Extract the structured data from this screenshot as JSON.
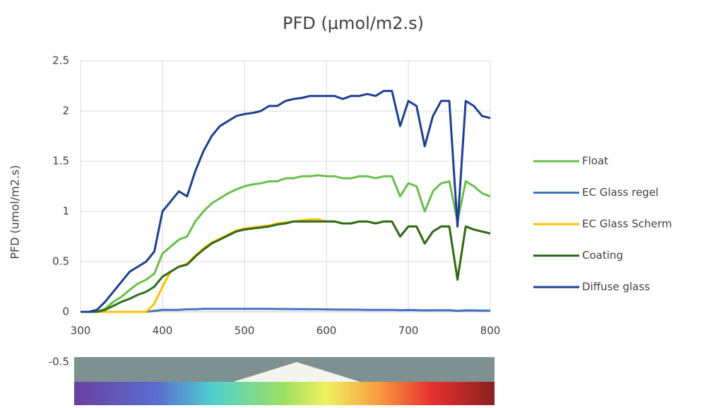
{
  "chart_data": {
    "type": "line",
    "title": "PFD (µmol/m2.s)",
    "y_label": "PFD (umol/m2.s)",
    "x": [
      300,
      310,
      320,
      330,
      340,
      350,
      360,
      370,
      380,
      390,
      400,
      410,
      420,
      430,
      440,
      450,
      460,
      470,
      480,
      490,
      500,
      510,
      520,
      530,
      540,
      550,
      560,
      570,
      580,
      590,
      600,
      610,
      620,
      630,
      640,
      650,
      660,
      670,
      680,
      690,
      700,
      710,
      720,
      730,
      740,
      750,
      760,
      770,
      780,
      790,
      800
    ],
    "series": [
      {
        "name": "Float",
        "color": "#6abf4b",
        "values": [
          0,
          0,
          0,
          0.03,
          0.1,
          0.15,
          0.22,
          0.28,
          0.32,
          0.38,
          0.58,
          0.65,
          0.72,
          0.75,
          0.9,
          1.0,
          1.08,
          1.13,
          1.18,
          1.22,
          1.25,
          1.27,
          1.28,
          1.3,
          1.3,
          1.33,
          1.33,
          1.35,
          1.35,
          1.36,
          1.35,
          1.35,
          1.33,
          1.33,
          1.35,
          1.35,
          1.33,
          1.35,
          1.35,
          1.15,
          1.28,
          1.25,
          1.0,
          1.2,
          1.28,
          1.3,
          0.9,
          1.3,
          1.25,
          1.18,
          1.15
        ]
      },
      {
        "name": "EC Glass regel",
        "color": "#4472c4",
        "values": [
          0,
          0,
          0,
          0,
          0,
          0,
          0,
          0,
          0,
          0.01,
          0.02,
          0.02,
          0.02,
          0.025,
          0.025,
          0.03,
          0.03,
          0.03,
          0.03,
          0.03,
          0.03,
          0.03,
          0.03,
          0.03,
          0.028,
          0.028,
          0.027,
          0.026,
          0.025,
          0.025,
          0.024,
          0.023,
          0.022,
          0.022,
          0.021,
          0.02,
          0.02,
          0.02,
          0.019,
          0.017,
          0.018,
          0.017,
          0.015,
          0.016,
          0.016,
          0.016,
          0.01,
          0.015,
          0.014,
          0.013,
          0.012
        ]
      },
      {
        "name": "EC Glass Scherm",
        "color": "#ffc000",
        "values": [
          0,
          0,
          0,
          0,
          0,
          0,
          0,
          0,
          0,
          0.08,
          0.25,
          0.4,
          0.45,
          0.48,
          0.56,
          0.63,
          0.69,
          0.73,
          0.77,
          0.81,
          0.83,
          0.84,
          0.85,
          0.86,
          0.88,
          0.89,
          0.9,
          0.91,
          0.92,
          0.92,
          0.9,
          0.9,
          0.88,
          0.88,
          0.9,
          0.9,
          0.88,
          0.9,
          0.9,
          0.75,
          0.85,
          0.85,
          0.68,
          0.8,
          0.85,
          0.85,
          0.33,
          0.85,
          0.82,
          0.8,
          0.78
        ]
      },
      {
        "name": "Coating",
        "color": "#2e6b1e",
        "values": [
          0,
          0,
          0,
          0.02,
          0.06,
          0.1,
          0.13,
          0.17,
          0.2,
          0.25,
          0.35,
          0.4,
          0.45,
          0.47,
          0.55,
          0.62,
          0.68,
          0.72,
          0.76,
          0.8,
          0.82,
          0.83,
          0.84,
          0.85,
          0.87,
          0.88,
          0.9,
          0.9,
          0.9,
          0.9,
          0.9,
          0.9,
          0.88,
          0.88,
          0.9,
          0.9,
          0.88,
          0.9,
          0.9,
          0.75,
          0.85,
          0.85,
          0.68,
          0.8,
          0.85,
          0.85,
          0.32,
          0.85,
          0.82,
          0.8,
          0.78
        ]
      },
      {
        "name": "Diffuse glass",
        "color": "#1f3f8f",
        "values": [
          0,
          0,
          0.02,
          0.1,
          0.2,
          0.3,
          0.4,
          0.45,
          0.5,
          0.6,
          1.0,
          1.1,
          1.2,
          1.15,
          1.4,
          1.6,
          1.75,
          1.85,
          1.9,
          1.95,
          1.97,
          1.98,
          2.0,
          2.05,
          2.05,
          2.1,
          2.12,
          2.13,
          2.15,
          2.15,
          2.15,
          2.15,
          2.12,
          2.15,
          2.15,
          2.17,
          2.15,
          2.2,
          2.2,
          1.85,
          2.1,
          2.05,
          1.65,
          1.95,
          2.1,
          2.1,
          0.85,
          2.1,
          2.05,
          1.95,
          1.93
        ]
      }
    ],
    "xlim": [
      300,
      800
    ],
    "xticks": [
      300,
      400,
      500,
      600,
      700,
      800
    ],
    "ylim": [
      -0.5,
      2.5
    ],
    "yticks": [
      -0.5,
      0,
      0.5,
      1,
      1.5,
      2,
      2.5
    ],
    "grid": true
  }
}
